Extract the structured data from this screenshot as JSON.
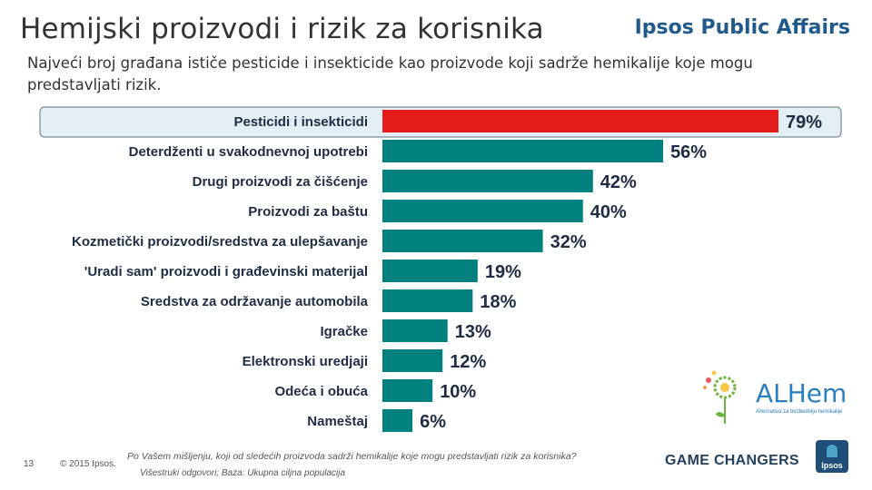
{
  "header": {
    "title": "Hemijski proizvodi i rizik za korisnika",
    "brand": "Ipsos Public Affairs",
    "subtitle": "Najveći broj građana ističe pesticide i insekticide kao proizvode koji sadrže hemikalije koje mogu predstavljati rizik."
  },
  "colors": {
    "highlight": "#e41b1b",
    "bar": "#00807f",
    "highlight_box": "#e4eff5"
  },
  "chart_data": {
    "type": "bar",
    "orientation": "horizontal",
    "categories": [
      "Pesticidi i insekticidi",
      "Deterdženti u svakodnevnoj upotrebi",
      "Drugi proizvodi za čišćenje",
      "Proizvodi za baštu",
      "Kozmetički proizvodi/sredstva za ulepšavanje",
      "'Uradi sam' proizvodi i građevinski materijal",
      "Sredstva za održavanje automobila",
      "Igračke",
      "Elektronski uredjaji",
      "Odeća i obuća",
      "Nameštaj"
    ],
    "values": [
      79,
      56,
      42,
      40,
      32,
      19,
      18,
      13,
      12,
      10,
      6
    ],
    "labels": [
      "79%",
      "56%",
      "42%",
      "40%",
      "32%",
      "19%",
      "18%",
      "13%",
      "12%",
      "10%",
      "6%"
    ],
    "highlight_index": 0,
    "xlim": [
      0,
      79
    ],
    "title": "",
    "xlabel": "",
    "ylabel": ""
  },
  "footer": {
    "page_number": "13",
    "copyright": "© 2015 Ipsos.",
    "question": "Po Vašem mišljenju, koji od sledećih proizvoda sadrži hemikalije koje mogu predstavljati rizik za korisnika?",
    "base": "Višestruki odgovori; Baza: Ukupna ciljna populacija",
    "game_changers": "GAME CHANGERS",
    "ipsos_logo": "Ipsos",
    "alhem_logo": "ALHem",
    "alhem_tagline": "Alternativa za bezbedniju hemikalije"
  }
}
